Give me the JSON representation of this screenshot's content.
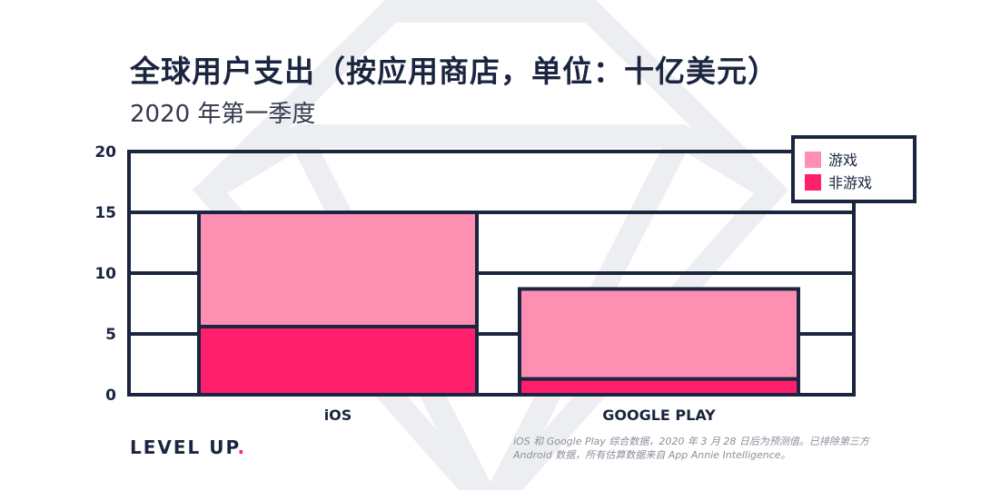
{
  "title": "全球用户支出（按应用商店，单位：十亿美元）",
  "subtitle": "2020 年第一季度",
  "brand": {
    "text": "LEVEL UP",
    "dot": "."
  },
  "footnote": [
    "iOS 和 Google Play 综合数据，2020 年 3 月 28 日后为预测值。已排除第三方",
    "Android 数据，所有估算数据来自 App Annie Intelligence。"
  ],
  "chart_data": {
    "type": "bar",
    "stacked": true,
    "categories": [
      "iOS",
      "GOOGLE PLAY"
    ],
    "series": [
      {
        "name": "非游戏",
        "values": [
          5.6,
          1.3
        ],
        "color": "#ff1f6b"
      },
      {
        "name": "游戏",
        "values": [
          9.4,
          7.4
        ],
        "color": "#fd8fb3"
      }
    ],
    "yticks": [
      "0",
      "5",
      "10",
      "15",
      "20"
    ],
    "ylim": [
      0,
      20
    ],
    "grid": true,
    "legend": {
      "placement": "top-right",
      "items": [
        "游戏",
        "非游戏"
      ]
    },
    "colors": {
      "axis": "#1b2540",
      "watermark": "#eceef1"
    }
  }
}
